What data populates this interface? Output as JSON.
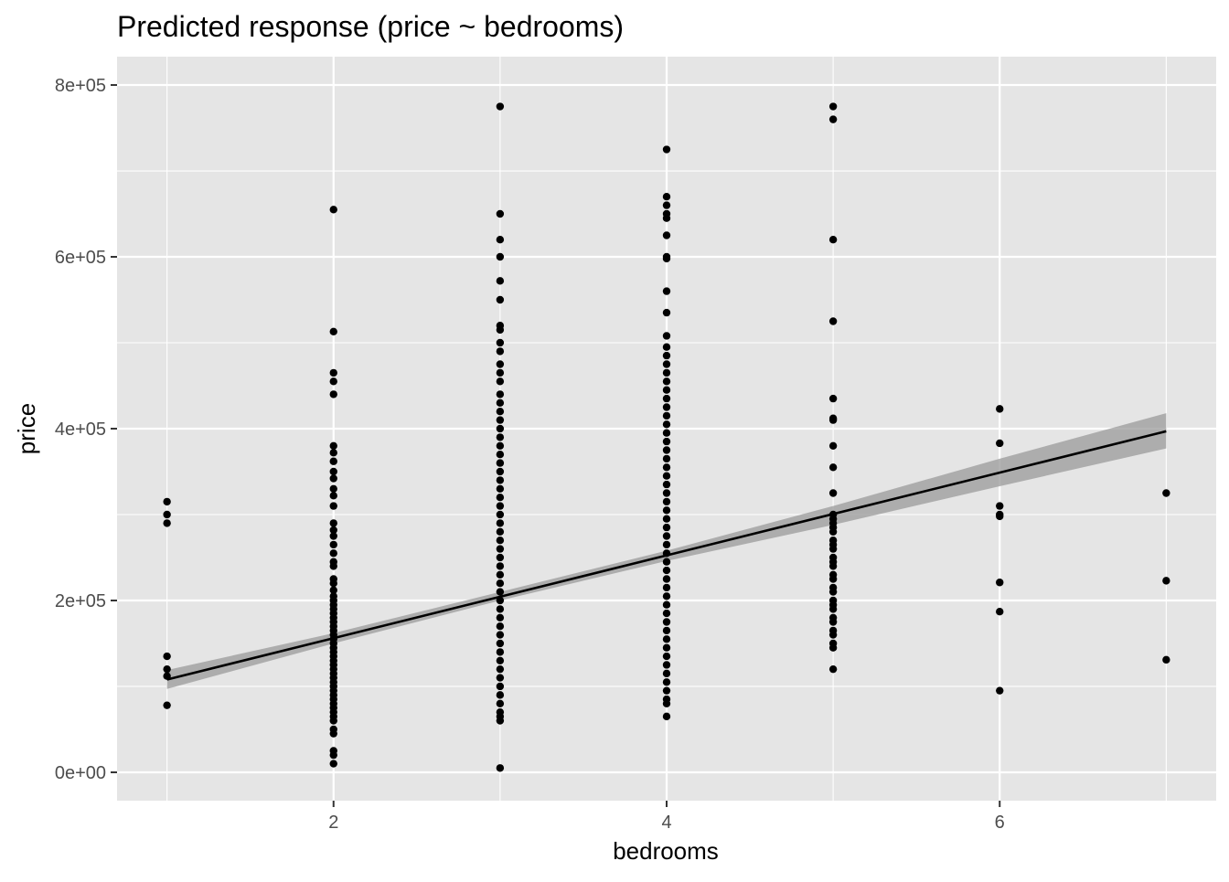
{
  "chart_data": {
    "type": "scatter",
    "title": "Predicted response (price ~ bedrooms)",
    "xlabel": "bedrooms",
    "ylabel": "price",
    "xlim": [
      0.7,
      7.3
    ],
    "ylim": [
      -33000,
      833000
    ],
    "x_ticks": [
      2,
      4,
      6
    ],
    "x_tick_labels": [
      "2",
      "4",
      "6"
    ],
    "y_ticks": [
      0,
      200000,
      400000,
      600000,
      800000
    ],
    "y_tick_labels": [
      "0e+00",
      "2e+05",
      "4e+05",
      "6e+05",
      "8e+05"
    ],
    "grid": true,
    "legend": "none",
    "colors": {
      "panel_background": "#e5e5e5",
      "grid": "#ffffff",
      "points": "#000000",
      "fit_line": "#000000",
      "confidence_band": "#999999"
    },
    "series": [
      {
        "type": "points",
        "groups": [
          {
            "x": 1,
            "y": [
              315000,
              300000,
              290000,
              135000,
              120000,
              112000,
              78000
            ]
          },
          {
            "x": 2,
            "y": [
              655000,
              513000,
              465000,
              455000,
              440000,
              380000,
              372000,
              362000,
              350000,
              342000,
              330000,
              322000,
              310000,
              290000,
              282000,
              275000,
              265000,
              255000,
              245000,
              240000,
              225000,
              220000,
              212000,
              205000,
              200000,
              195000,
              190000,
              185000,
              180000,
              175000,
              170000,
              165000,
              160000,
              155000,
              150000,
              145000,
              140000,
              135000,
              130000,
              125000,
              120000,
              115000,
              110000,
              105000,
              100000,
              95000,
              90000,
              85000,
              80000,
              75000,
              70000,
              65000,
              60000,
              50000,
              45000,
              25000,
              20000,
              10000
            ]
          },
          {
            "x": 3,
            "y": [
              775000,
              650000,
              620000,
              600000,
              572000,
              550000,
              520000,
              515000,
              500000,
              490000,
              475000,
              465000,
              455000,
              440000,
              430000,
              420000,
              410000,
              400000,
              390000,
              380000,
              370000,
              360000,
              350000,
              340000,
              330000,
              320000,
              310000,
              300000,
              290000,
              280000,
              270000,
              260000,
              250000,
              240000,
              230000,
              220000,
              210000,
              200000,
              190000,
              180000,
              170000,
              160000,
              150000,
              140000,
              130000,
              120000,
              110000,
              100000,
              90000,
              80000,
              70000,
              65000,
              60000,
              5000
            ]
          },
          {
            "x": 4,
            "y": [
              725000,
              670000,
              660000,
              650000,
              645000,
              625000,
              600000,
              598000,
              560000,
              535000,
              508000,
              495000,
              485000,
              475000,
              465000,
              455000,
              445000,
              435000,
              425000,
              415000,
              405000,
              395000,
              385000,
              375000,
              365000,
              355000,
              345000,
              335000,
              325000,
              315000,
              305000,
              295000,
              285000,
              275000,
              265000,
              255000,
              245000,
              235000,
              225000,
              215000,
              205000,
              195000,
              185000,
              175000,
              165000,
              155000,
              145000,
              135000,
              125000,
              115000,
              105000,
              95000,
              85000,
              80000,
              65000
            ]
          },
          {
            "x": 5,
            "y": [
              775000,
              760000,
              620000,
              525000,
              435000,
              412000,
              410000,
              380000,
              355000,
              325000,
              300000,
              295000,
              290000,
              285000,
              280000,
              270000,
              265000,
              260000,
              250000,
              245000,
              240000,
              230000,
              225000,
              215000,
              210000,
              200000,
              195000,
              190000,
              180000,
              175000,
              165000,
              160000,
              150000,
              145000,
              120000
            ]
          },
          {
            "x": 6,
            "y": [
              423000,
              383000,
              310000,
              300000,
              298000,
              221000,
              187000,
              95000
            ]
          },
          {
            "x": 7,
            "y": [
              325000,
              223000,
              131000
            ]
          }
        ]
      },
      {
        "type": "fit_line",
        "x": [
          1,
          7
        ],
        "y": [
          108000,
          397000
        ]
      },
      {
        "type": "confidence_band",
        "x": [
          1,
          2,
          3,
          4,
          5,
          6,
          7
        ],
        "lower": [
          97000,
          150000,
          200000,
          246000,
          288000,
          333000,
          377000
        ],
        "upper": [
          119000,
          162000,
          210000,
          258000,
          310000,
          365000,
          418000
        ]
      }
    ]
  }
}
